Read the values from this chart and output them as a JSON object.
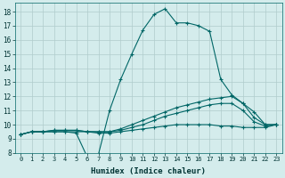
{
  "xlabel": "Humidex (Indice chaleur)",
  "bg_color": "#d4ecec",
  "grid_color": "#b0cccc",
  "line_color": "#006666",
  "xlim": [
    -0.5,
    23.5
  ],
  "ylim": [
    8,
    18.6
  ],
  "xtick_labels": [
    "0",
    "1",
    "2",
    "3",
    "4",
    "5",
    "6",
    "7",
    "8",
    "9",
    "10",
    "11",
    "12",
    "13",
    "14",
    "15",
    "16",
    "17",
    "18",
    "19",
    "20",
    "21",
    "22",
    "23"
  ],
  "xticks": [
    0,
    1,
    2,
    3,
    4,
    5,
    6,
    7,
    8,
    9,
    10,
    11,
    12,
    13,
    14,
    15,
    16,
    17,
    18,
    19,
    20,
    21,
    22,
    23
  ],
  "yticks": [
    8,
    9,
    10,
    11,
    12,
    13,
    14,
    15,
    16,
    17,
    18
  ],
  "line1_x": [
    0,
    1,
    2,
    3,
    4,
    5,
    6,
    7,
    8,
    9,
    10,
    11,
    12,
    13,
    14,
    15,
    16,
    17,
    18,
    19,
    20,
    21,
    22,
    23
  ],
  "line1_y": [
    9.3,
    9.5,
    9.5,
    9.5,
    9.5,
    9.4,
    7.7,
    7.9,
    11.0,
    13.2,
    15.0,
    16.7,
    17.8,
    18.2,
    17.2,
    17.2,
    17.0,
    16.6,
    13.2,
    12.1,
    11.5,
    10.9,
    10.0,
    10.0
  ],
  "line2_x": [
    0,
    1,
    2,
    3,
    4,
    5,
    6,
    7,
    8,
    9,
    10,
    11,
    12,
    13,
    14,
    15,
    16,
    17,
    18,
    19,
    20,
    21,
    22,
    23
  ],
  "line2_y": [
    9.3,
    9.5,
    9.5,
    9.6,
    9.6,
    9.6,
    9.5,
    9.5,
    9.5,
    9.7,
    10.0,
    10.3,
    10.6,
    10.9,
    11.2,
    11.4,
    11.6,
    11.8,
    11.9,
    12.0,
    11.5,
    10.5,
    10.0,
    10.0
  ],
  "line3_x": [
    0,
    1,
    2,
    3,
    4,
    5,
    6,
    7,
    8,
    9,
    10,
    11,
    12,
    13,
    14,
    15,
    16,
    17,
    18,
    19,
    20,
    21,
    22,
    23
  ],
  "line3_y": [
    9.3,
    9.5,
    9.5,
    9.6,
    9.6,
    9.6,
    9.5,
    9.5,
    9.5,
    9.6,
    9.8,
    10.0,
    10.3,
    10.6,
    10.8,
    11.0,
    11.2,
    11.4,
    11.5,
    11.5,
    11.0,
    10.2,
    9.9,
    10.0
  ],
  "line4_x": [
    0,
    1,
    2,
    3,
    4,
    5,
    6,
    7,
    8,
    9,
    10,
    11,
    12,
    13,
    14,
    15,
    16,
    17,
    18,
    19,
    20,
    21,
    22,
    23
  ],
  "line4_y": [
    9.3,
    9.5,
    9.5,
    9.5,
    9.5,
    9.5,
    9.5,
    9.4,
    9.4,
    9.5,
    9.6,
    9.7,
    9.8,
    9.9,
    10.0,
    10.0,
    10.0,
    10.0,
    9.9,
    9.9,
    9.8,
    9.8,
    9.8,
    10.0
  ],
  "label_fontsize": 5.0,
  "xlabel_fontsize": 6.5,
  "marker_size": 3.0,
  "lw": 0.8
}
